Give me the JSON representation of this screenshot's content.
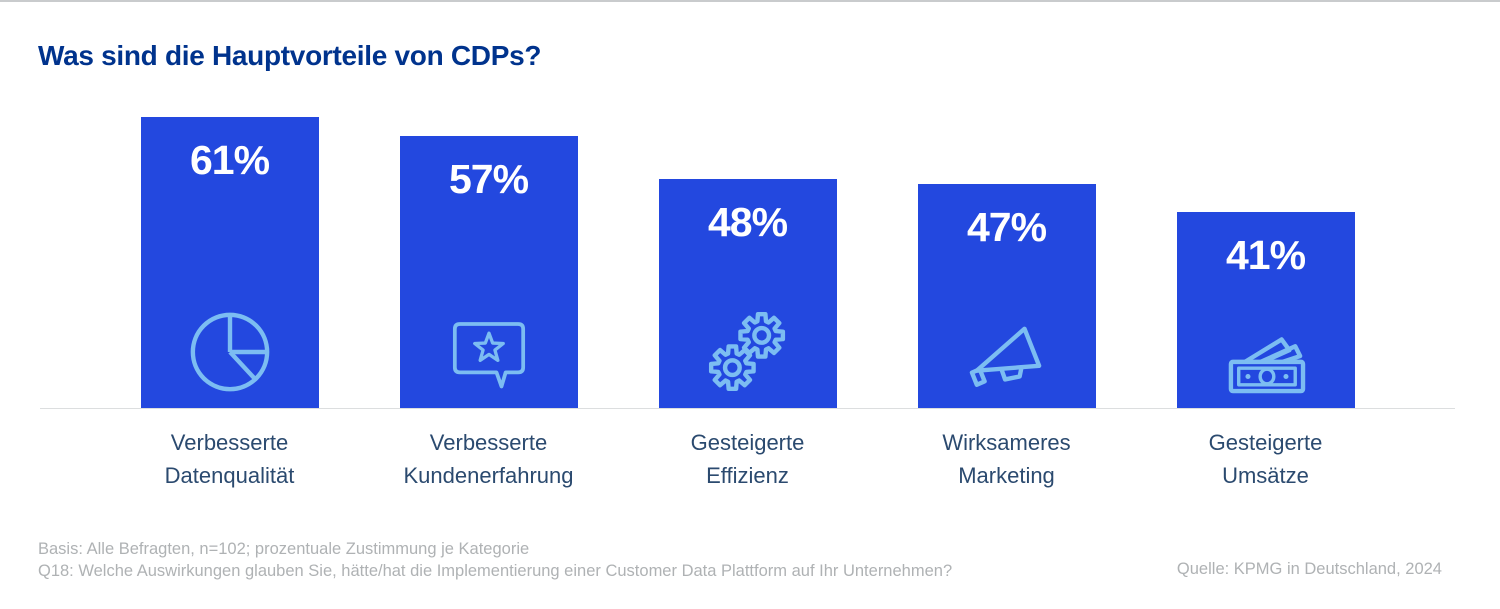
{
  "page": {
    "title": "Was sind die Hauptvorteile von CDPs?"
  },
  "chart_data": {
    "type": "bar",
    "title": "Was sind die Hauptvorteile von CDPs?",
    "unit": "%",
    "ylim": [
      0,
      100
    ],
    "grid": false,
    "legend": false,
    "categories": [
      "Verbesserte Datenqualität",
      "Verbesserte Kundenerfahrung",
      "Gesteigerte Effizienz",
      "Wirksameres Marketing",
      "Gesteigerte Umsätze"
    ],
    "values": [
      61,
      57,
      48,
      47,
      41
    ],
    "bars": [
      {
        "value": 61,
        "value_label": "61%",
        "category": "Verbesserte\nDatenqualität",
        "icon": "pie-chart-icon"
      },
      {
        "value": 57,
        "value_label": "57%",
        "category": "Verbesserte\nKundenerfahrung",
        "icon": "speech-bubble-star-icon"
      },
      {
        "value": 48,
        "value_label": "48%",
        "category": "Gesteigerte\nEffizienz",
        "icon": "gears-icon"
      },
      {
        "value": 47,
        "value_label": "47%",
        "category": "Wirksameres\nMarketing",
        "icon": "megaphone-icon"
      },
      {
        "value": 41,
        "value_label": "41%",
        "category": "Gesteigerte\nUmsätze",
        "icon": "banknotes-icon"
      }
    ]
  },
  "footer": {
    "basis": "Basis: Alle Befragten, n=102; prozentuale Zustimmung je Kategorie",
    "question": "Q18: Welche Auswirkungen glauben Sie, hätte/hat die Implementierung einer Customer Data Plattform auf Ihr Unternehmen?",
    "source": "Quelle: KPMG in Deutschland, 2024"
  },
  "colors": {
    "bar-color": "#2348DF",
    "icon-color": "#7CBDF2",
    "title-color": "#00338D",
    "label-color": "#2B4A6F",
    "footnote-color": "#AFB2B4",
    "baseline-color": "#DCDEDF",
    "top-border-color": "#C9CBCD"
  }
}
